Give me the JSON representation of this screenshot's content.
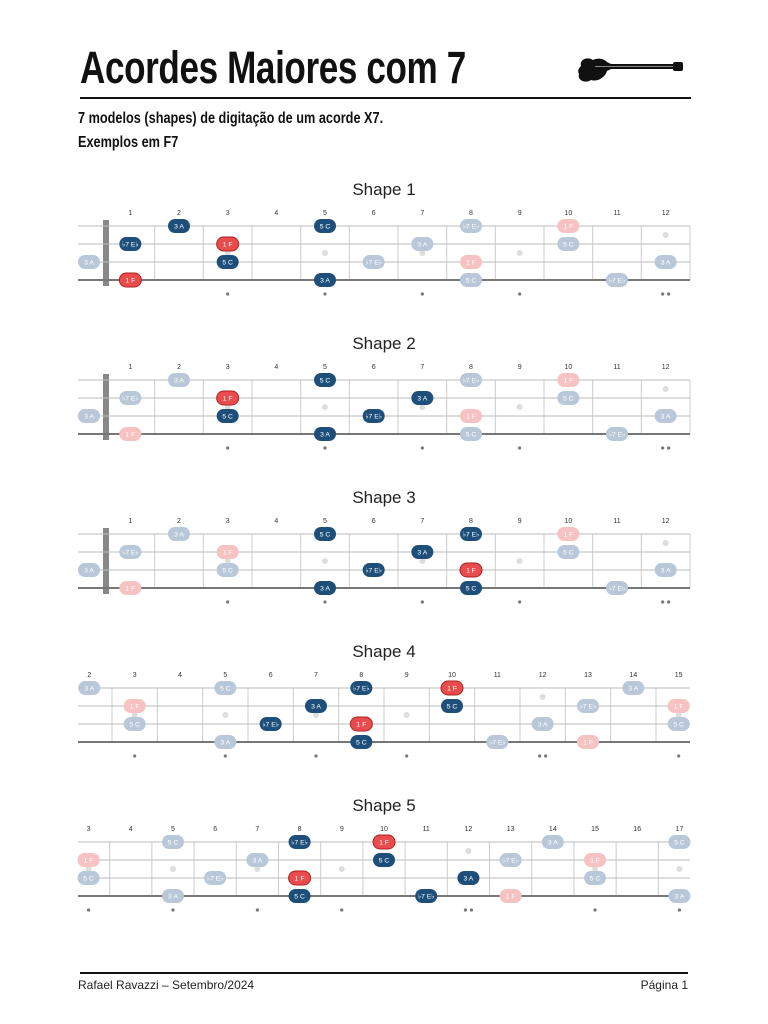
{
  "page": {
    "title": "Acordes Maiores com 7",
    "subtitle_line1": "7 modelos (shapes) de digitação de um acorde X7.",
    "subtitle_line2": "Exemplos em F7",
    "footer_left": "Rafael Ravazzi – Setembro/2024",
    "footer_right": "Página 1"
  },
  "colors": {
    "root": "#e84c4c",
    "chord": "#1d4f7a",
    "ghost": "#b8c8d8",
    "ghost_root": "#f6c2c2",
    "string": "#bbbbbb",
    "fret": "#cccccc",
    "nut": "#888888"
  },
  "icons": {
    "guitar": "electric-guitar-icon"
  },
  "shapes": [
    {
      "title": "Shape 1",
      "frets": [
        "1",
        "2",
        "3",
        "4",
        "5",
        "6",
        "7",
        "8",
        "9",
        "10",
        "11",
        "12"
      ],
      "first_fret": 1,
      "nut": true,
      "notes": [
        {
          "s": 0,
          "f": 2,
          "t": "3 A",
          "k": "chord"
        },
        {
          "s": 0,
          "f": 5,
          "t": "5 C",
          "k": "chord"
        },
        {
          "s": 0,
          "f": 8,
          "t": "♭7 E♭",
          "k": "ghost"
        },
        {
          "s": 0,
          "f": 10,
          "t": "1 F",
          "k": "ghost_root"
        },
        {
          "s": 1,
          "f": 1,
          "t": "♭7 E♭",
          "k": "chord"
        },
        {
          "s": 1,
          "f": 3,
          "t": "1 F",
          "k": "root"
        },
        {
          "s": 1,
          "f": 7,
          "t": "3 A",
          "k": "ghost"
        },
        {
          "s": 1,
          "f": 10,
          "t": "5 C",
          "k": "ghost"
        },
        {
          "s": 2,
          "f": 0,
          "t": "3 A",
          "k": "ghost"
        },
        {
          "s": 2,
          "f": 3,
          "t": "5 C",
          "k": "chord"
        },
        {
          "s": 2,
          "f": 6,
          "t": "♭7 E♭",
          "k": "ghost"
        },
        {
          "s": 2,
          "f": 8,
          "t": "1 F",
          "k": "ghost_root"
        },
        {
          "s": 2,
          "f": 12,
          "t": "3 A",
          "k": "ghost"
        },
        {
          "s": 3,
          "f": 1,
          "t": "1 F",
          "k": "root"
        },
        {
          "s": 3,
          "f": 5,
          "t": "3 A",
          "k": "chord"
        },
        {
          "s": 3,
          "f": 8,
          "t": "5 C",
          "k": "ghost"
        },
        {
          "s": 3,
          "f": 11,
          "t": "♭7 E♭",
          "k": "ghost"
        }
      ]
    },
    {
      "title": "Shape 2",
      "frets": [
        "1",
        "2",
        "3",
        "4",
        "5",
        "6",
        "7",
        "8",
        "9",
        "10",
        "11",
        "12"
      ],
      "first_fret": 1,
      "nut": true,
      "notes": [
        {
          "s": 0,
          "f": 2,
          "t": "3 A",
          "k": "ghost"
        },
        {
          "s": 0,
          "f": 5,
          "t": "5 C",
          "k": "chord"
        },
        {
          "s": 0,
          "f": 8,
          "t": "♭7 E♭",
          "k": "ghost"
        },
        {
          "s": 0,
          "f": 10,
          "t": "1 F",
          "k": "ghost_root"
        },
        {
          "s": 1,
          "f": 1,
          "t": "♭7 E♭",
          "k": "ghost"
        },
        {
          "s": 1,
          "f": 3,
          "t": "1 F",
          "k": "root"
        },
        {
          "s": 1,
          "f": 7,
          "t": "3 A",
          "k": "chord"
        },
        {
          "s": 1,
          "f": 10,
          "t": "5 C",
          "k": "ghost"
        },
        {
          "s": 2,
          "f": 0,
          "t": "3 A",
          "k": "ghost"
        },
        {
          "s": 2,
          "f": 3,
          "t": "5 C",
          "k": "chord"
        },
        {
          "s": 2,
          "f": 6,
          "t": "♭7 E♭",
          "k": "chord"
        },
        {
          "s": 2,
          "f": 8,
          "t": "1 F",
          "k": "ghost_root"
        },
        {
          "s": 2,
          "f": 12,
          "t": "3 A",
          "k": "ghost"
        },
        {
          "s": 3,
          "f": 1,
          "t": "1 F",
          "k": "ghost_root"
        },
        {
          "s": 3,
          "f": 5,
          "t": "3 A",
          "k": "chord"
        },
        {
          "s": 3,
          "f": 8,
          "t": "5 C",
          "k": "ghost"
        },
        {
          "s": 3,
          "f": 11,
          "t": "♭7 E♭",
          "k": "ghost"
        }
      ]
    },
    {
      "title": "Shape 3",
      "frets": [
        "1",
        "2",
        "3",
        "4",
        "5",
        "6",
        "7",
        "8",
        "9",
        "10",
        "11",
        "12"
      ],
      "first_fret": 1,
      "nut": true,
      "notes": [
        {
          "s": 0,
          "f": 2,
          "t": "3 A",
          "k": "ghost"
        },
        {
          "s": 0,
          "f": 5,
          "t": "5 C",
          "k": "chord"
        },
        {
          "s": 0,
          "f": 8,
          "t": "♭7 E♭",
          "k": "chord"
        },
        {
          "s": 0,
          "f": 10,
          "t": "1 F",
          "k": "ghost_root"
        },
        {
          "s": 1,
          "f": 1,
          "t": "♭7 E♭",
          "k": "ghost"
        },
        {
          "s": 1,
          "f": 3,
          "t": "1 F",
          "k": "ghost_root"
        },
        {
          "s": 1,
          "f": 7,
          "t": "3 A",
          "k": "chord"
        },
        {
          "s": 1,
          "f": 10,
          "t": "5 C",
          "k": "ghost"
        },
        {
          "s": 2,
          "f": 0,
          "t": "3 A",
          "k": "ghost"
        },
        {
          "s": 2,
          "f": 3,
          "t": "5 C",
          "k": "ghost"
        },
        {
          "s": 2,
          "f": 6,
          "t": "♭7 E♭",
          "k": "chord"
        },
        {
          "s": 2,
          "f": 8,
          "t": "1 F",
          "k": "root"
        },
        {
          "s": 2,
          "f": 12,
          "t": "3 A",
          "k": "ghost"
        },
        {
          "s": 3,
          "f": 1,
          "t": "1 F",
          "k": "ghost_root"
        },
        {
          "s": 3,
          "f": 5,
          "t": "3 A",
          "k": "chord"
        },
        {
          "s": 3,
          "f": 8,
          "t": "5 C",
          "k": "chord"
        },
        {
          "s": 3,
          "f": 11,
          "t": "♭7 E♭",
          "k": "ghost"
        }
      ]
    },
    {
      "title": "Shape 4",
      "frets": [
        "2",
        "3",
        "4",
        "5",
        "6",
        "7",
        "8",
        "9",
        "10",
        "11",
        "12",
        "13",
        "14",
        "15"
      ],
      "first_fret": 2,
      "nut": false,
      "notes": [
        {
          "s": 0,
          "f": 2,
          "t": "3 A",
          "k": "ghost"
        },
        {
          "s": 0,
          "f": 5,
          "t": "5 C",
          "k": "ghost"
        },
        {
          "s": 0,
          "f": 8,
          "t": "♭7 E♭",
          "k": "chord"
        },
        {
          "s": 0,
          "f": 10,
          "t": "1 F",
          "k": "root"
        },
        {
          "s": 0,
          "f": 14,
          "t": "3 A",
          "k": "ghost"
        },
        {
          "s": 1,
          "f": 3,
          "t": "1 F",
          "k": "ghost_root"
        },
        {
          "s": 1,
          "f": 7,
          "t": "3 A",
          "k": "chord"
        },
        {
          "s": 1,
          "f": 10,
          "t": "5 C",
          "k": "chord"
        },
        {
          "s": 1,
          "f": 13,
          "t": "♭7 E♭",
          "k": "ghost"
        },
        {
          "s": 1,
          "f": 15,
          "t": "1 F",
          "k": "ghost_root"
        },
        {
          "s": 2,
          "f": 3,
          "t": "5 C",
          "k": "ghost"
        },
        {
          "s": 2,
          "f": 6,
          "t": "♭7 E♭",
          "k": "chord"
        },
        {
          "s": 2,
          "f": 8,
          "t": "1 F",
          "k": "root"
        },
        {
          "s": 2,
          "f": 12,
          "t": "3 A",
          "k": "ghost"
        },
        {
          "s": 2,
          "f": 15,
          "t": "5 C",
          "k": "ghost"
        },
        {
          "s": 3,
          "f": 5,
          "t": "3 A",
          "k": "ghost"
        },
        {
          "s": 3,
          "f": 8,
          "t": "5 C",
          "k": "chord"
        },
        {
          "s": 3,
          "f": 11,
          "t": "♭7 E♭",
          "k": "ghost"
        },
        {
          "s": 3,
          "f": 13,
          "t": "1 F",
          "k": "ghost_root"
        }
      ]
    },
    {
      "title": "Shape 5",
      "frets": [
        "3",
        "4",
        "5",
        "6",
        "7",
        "8",
        "9",
        "10",
        "11",
        "12",
        "13",
        "14",
        "15",
        "16",
        "17"
      ],
      "first_fret": 3,
      "nut": false,
      "notes": [
        {
          "s": 0,
          "f": 5,
          "t": "5 C",
          "k": "ghost"
        },
        {
          "s": 0,
          "f": 8,
          "t": "♭7 E♭",
          "k": "chord"
        },
        {
          "s": 0,
          "f": 10,
          "t": "1 F",
          "k": "root"
        },
        {
          "s": 0,
          "f": 14,
          "t": "3 A",
          "k": "ghost"
        },
        {
          "s": 0,
          "f": 17,
          "t": "5 C",
          "k": "ghost"
        },
        {
          "s": 1,
          "f": 3,
          "t": "1 F",
          "k": "ghost_root"
        },
        {
          "s": 1,
          "f": 7,
          "t": "3 A",
          "k": "ghost"
        },
        {
          "s": 1,
          "f": 10,
          "t": "5 C",
          "k": "chord"
        },
        {
          "s": 1,
          "f": 13,
          "t": "♭7 E♭",
          "k": "ghost"
        },
        {
          "s": 1,
          "f": 15,
          "t": "1 F",
          "k": "ghost_root"
        },
        {
          "s": 2,
          "f": 3,
          "t": "5 C",
          "k": "ghost"
        },
        {
          "s": 2,
          "f": 6,
          "t": "♭7 E♭",
          "k": "ghost"
        },
        {
          "s": 2,
          "f": 8,
          "t": "1 F",
          "k": "root"
        },
        {
          "s": 2,
          "f": 12,
          "t": "3 A",
          "k": "chord"
        },
        {
          "s": 2,
          "f": 15,
          "t": "5 C",
          "k": "ghost"
        },
        {
          "s": 3,
          "f": 5,
          "t": "3 A",
          "k": "ghost"
        },
        {
          "s": 3,
          "f": 8,
          "t": "5 C",
          "k": "chord"
        },
        {
          "s": 3,
          "f": 11,
          "t": "♭7 E♭",
          "k": "chord"
        },
        {
          "s": 3,
          "f": 13,
          "t": "1 F",
          "k": "ghost_root"
        },
        {
          "s": 3,
          "f": 17,
          "t": "3 A",
          "k": "ghost"
        }
      ]
    }
  ]
}
